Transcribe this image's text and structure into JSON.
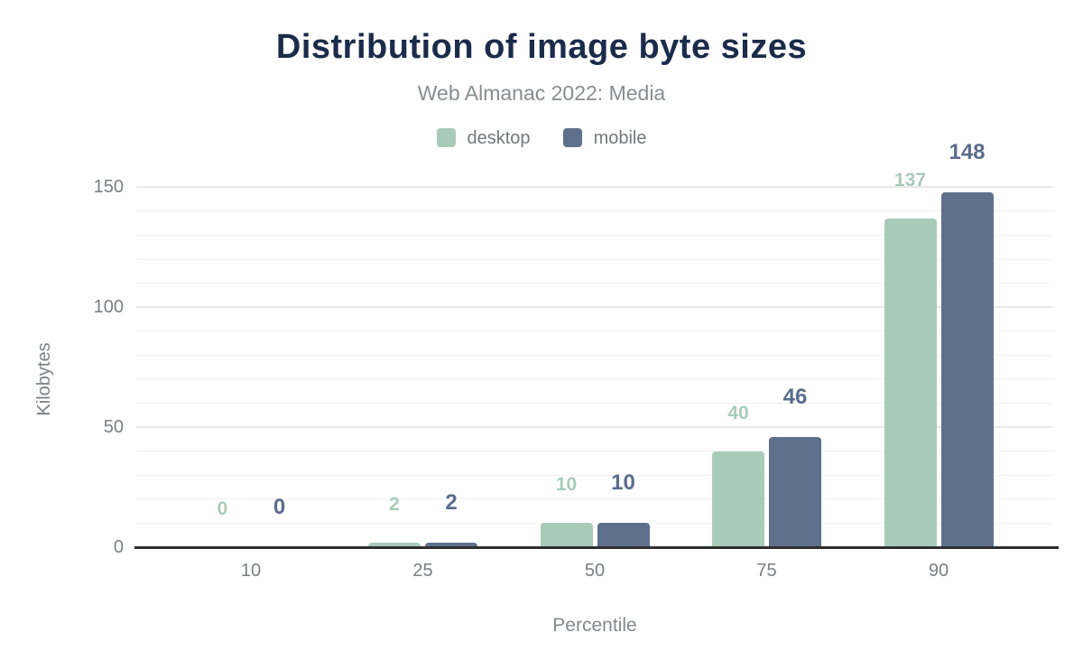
{
  "chart_data": {
    "type": "bar",
    "title": "Distribution of image byte sizes",
    "subtitle": "Web Almanac 2022: Media",
    "xlabel": "Percentile",
    "ylabel": "Kilobytes",
    "categories": [
      "10",
      "25",
      "50",
      "75",
      "90"
    ],
    "series": [
      {
        "name": "desktop",
        "color": "#a8cbb9",
        "label_color": "#a8cbb9",
        "values": [
          0,
          2,
          10,
          40,
          137
        ]
      },
      {
        "name": "mobile",
        "color": "#5f708d",
        "label_color": "#5a6c8c",
        "values": [
          0,
          2,
          10,
          46,
          148
        ]
      }
    ],
    "yticks": [
      0,
      50,
      100,
      150
    ],
    "ylim": [
      0,
      150
    ],
    "grid": {
      "orientation": "horizontal",
      "minor_step_kb": 10,
      "major_step_kb": 50
    },
    "legend_position": "top",
    "bar_labels_shown": true
  },
  "colors": {
    "title_text": "#1b2b4a",
    "muted_text": "#8a8d90",
    "axis_text": "#7b7e82",
    "axis_line": "#2e2e2e",
    "desktop": "#a8cbb9",
    "mobile": "#5f708d"
  }
}
